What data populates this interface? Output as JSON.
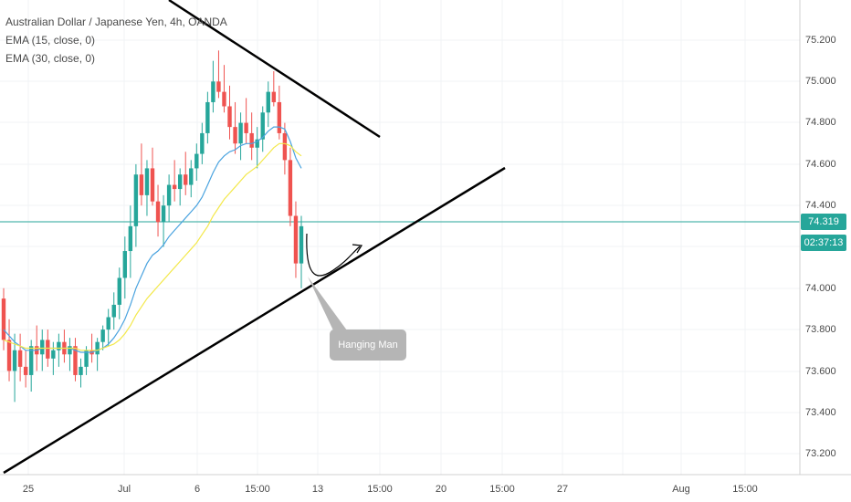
{
  "legend": {
    "title": "Australian Dollar / Japanese Yen, 4h, OANDA",
    "ema15": "EMA (15, close, 0)",
    "ema30": "EMA (30, close, 0)"
  },
  "price_axis": {
    "ticks": [
      "75.200",
      "75.000",
      "74.800",
      "74.600",
      "74.400",
      "74.000",
      "73.800",
      "73.600",
      "73.400",
      "73.200"
    ],
    "current_price": "74.319",
    "countdown": "02:37:13"
  },
  "time_axis": {
    "ticks": [
      "25",
      "Jul",
      "6",
      "15:00",
      "13",
      "15:00",
      "20",
      "15:00",
      "27",
      "Aug",
      "15:00"
    ]
  },
  "annotation": {
    "label": "Hanging Man"
  },
  "colors": {
    "up": "#26a69a",
    "down": "#ef5350",
    "ema15": "#4aa3df",
    "ema30": "#f3e84a",
    "current_line": "#26a69a",
    "trendline": "#000000"
  },
  "chart_data": {
    "type": "candlestick",
    "symbol": "AUDJPY",
    "interval": "4h",
    "y_range": [
      73.12,
      75.38
    ],
    "ohlc": [
      [
        73.95,
        74.0,
        73.7,
        73.75
      ],
      [
        73.75,
        73.85,
        73.55,
        73.6
      ],
      [
        73.6,
        73.78,
        73.45,
        73.7
      ],
      [
        73.7,
        73.78,
        73.55,
        73.62
      ],
      [
        73.62,
        73.7,
        73.52,
        73.58
      ],
      [
        73.58,
        73.75,
        73.5,
        73.72
      ],
      [
        73.72,
        73.82,
        73.6,
        73.68
      ],
      [
        73.68,
        73.8,
        73.6,
        73.75
      ],
      [
        73.75,
        73.8,
        73.62,
        73.66
      ],
      [
        73.66,
        73.74,
        73.58,
        73.7
      ],
      [
        73.7,
        73.78,
        73.62,
        73.74
      ],
      [
        73.74,
        73.8,
        73.64,
        73.68
      ],
      [
        73.68,
        73.76,
        73.6,
        73.72
      ],
      [
        73.72,
        73.76,
        73.55,
        73.58
      ],
      [
        73.58,
        73.66,
        73.52,
        73.62
      ],
      [
        73.62,
        73.72,
        73.58,
        73.7
      ],
      [
        73.7,
        73.78,
        73.64,
        73.68
      ],
      [
        73.68,
        73.76,
        73.6,
        73.74
      ],
      [
        73.74,
        73.82,
        73.7,
        73.8
      ],
      [
        73.8,
        73.9,
        73.72,
        73.86
      ],
      [
        73.86,
        73.98,
        73.8,
        73.92
      ],
      [
        73.92,
        74.1,
        73.85,
        74.05
      ],
      [
        74.05,
        74.25,
        73.95,
        74.18
      ],
      [
        74.18,
        74.4,
        74.05,
        74.3
      ],
      [
        74.3,
        74.6,
        74.2,
        74.55
      ],
      [
        74.55,
        74.7,
        74.4,
        74.45
      ],
      [
        74.45,
        74.62,
        74.35,
        74.58
      ],
      [
        74.58,
        74.68,
        74.4,
        74.42
      ],
      [
        74.42,
        74.5,
        74.25,
        74.32
      ],
      [
        74.32,
        74.45,
        74.2,
        74.4
      ],
      [
        74.4,
        74.55,
        74.32,
        74.5
      ],
      [
        74.5,
        74.62,
        74.42,
        74.48
      ],
      [
        74.48,
        74.58,
        74.4,
        74.55
      ],
      [
        74.55,
        74.66,
        74.45,
        74.5
      ],
      [
        74.5,
        74.62,
        74.44,
        74.58
      ],
      [
        74.58,
        74.7,
        74.52,
        74.65
      ],
      [
        74.65,
        74.8,
        74.6,
        74.75
      ],
      [
        74.75,
        74.95,
        74.7,
        74.9
      ],
      [
        74.9,
        75.1,
        74.85,
        75.0
      ],
      [
        75.0,
        75.15,
        74.92,
        74.95
      ],
      [
        74.95,
        75.08,
        74.85,
        74.88
      ],
      [
        74.88,
        74.98,
        74.72,
        74.78
      ],
      [
        74.78,
        74.9,
        74.65,
        74.7
      ],
      [
        74.7,
        74.85,
        74.62,
        74.8
      ],
      [
        74.8,
        74.92,
        74.7,
        74.75
      ],
      [
        74.75,
        74.85,
        74.62,
        74.68
      ],
      [
        74.68,
        74.78,
        74.58,
        74.72
      ],
      [
        74.72,
        74.88,
        74.66,
        74.85
      ],
      [
        74.85,
        75.0,
        74.78,
        74.95
      ],
      [
        74.95,
        75.05,
        74.88,
        74.9
      ],
      [
        74.9,
        74.98,
        74.72,
        74.75
      ],
      [
        74.75,
        74.8,
        74.55,
        74.62
      ],
      [
        74.62,
        74.68,
        74.3,
        74.35
      ],
      [
        74.35,
        74.42,
        74.05,
        74.12
      ],
      [
        74.12,
        74.35,
        74.0,
        74.3
      ]
    ],
    "ema15": [
      73.8,
      73.77,
      73.74,
      73.72,
      73.7,
      73.7,
      73.7,
      73.71,
      73.71,
      73.71,
      73.71,
      73.71,
      73.71,
      73.7,
      73.69,
      73.69,
      73.69,
      73.7,
      73.71,
      73.73,
      73.76,
      73.8,
      73.85,
      73.92,
      74.0,
      74.06,
      74.12,
      74.16,
      74.18,
      74.21,
      74.25,
      74.28,
      74.31,
      74.34,
      74.37,
      74.4,
      74.44,
      74.5,
      74.56,
      74.61,
      74.64,
      74.66,
      74.67,
      74.69,
      74.7,
      74.7,
      74.71,
      74.73,
      74.76,
      74.78,
      74.78,
      74.77,
      74.71,
      74.63,
      74.58
    ],
    "ema30": [
      73.75,
      73.74,
      73.73,
      73.72,
      73.71,
      73.71,
      73.71,
      73.71,
      73.71,
      73.71,
      73.71,
      73.71,
      73.71,
      73.71,
      73.7,
      73.7,
      73.7,
      73.7,
      73.71,
      73.72,
      73.73,
      73.75,
      73.78,
      73.82,
      73.87,
      73.91,
      73.95,
      73.98,
      74.01,
      74.04,
      74.07,
      74.1,
      74.13,
      74.16,
      74.19,
      74.22,
      74.26,
      74.3,
      74.35,
      74.39,
      74.43,
      74.46,
      74.49,
      74.52,
      74.55,
      74.57,
      74.59,
      74.62,
      74.65,
      74.68,
      74.7,
      74.7,
      74.69,
      74.66,
      74.64
    ]
  }
}
